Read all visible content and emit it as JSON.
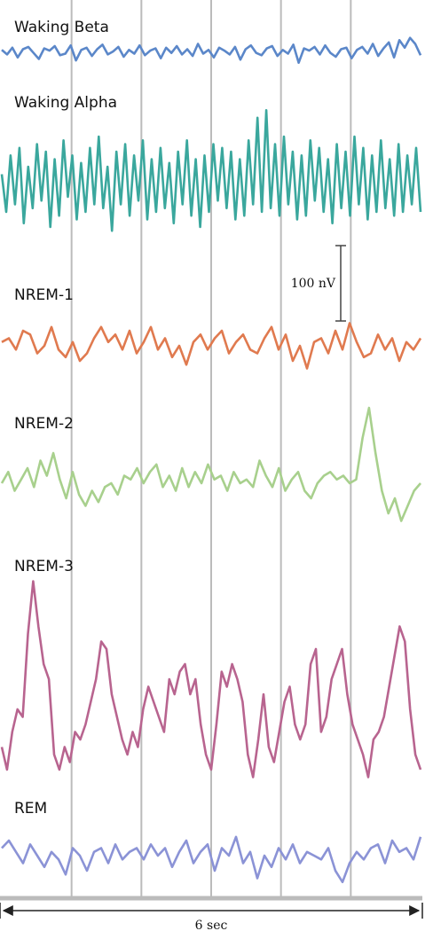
{
  "chart_data": {
    "type": "line",
    "scale_bar": {
      "value": 100,
      "label": "100 nV"
    },
    "time_span": {
      "value": 6,
      "label": "6 sec"
    },
    "series": [
      {
        "name": "Waking Beta",
        "color": "#5b87c9",
        "values": [
          2,
          -4,
          5,
          -8,
          3,
          6,
          -2,
          -10,
          4,
          1,
          7,
          -5,
          -3,
          8,
          -12,
          2,
          5,
          -6,
          3,
          9,
          -4,
          0,
          6,
          -7,
          2,
          -3,
          8,
          -5,
          1,
          4,
          -9,
          5,
          -2,
          7,
          -4,
          3,
          -6,
          10,
          -3,
          2,
          -8,
          5,
          1,
          -4,
          6,
          -11,
          3,
          8,
          -2,
          -5,
          4,
          7,
          -6,
          2,
          -3,
          9,
          -15,
          4,
          1,
          6,
          -4,
          8,
          -2,
          -7,
          3,
          5,
          -9,
          2,
          6,
          -3,
          10,
          -6,
          4,
          12,
          -8,
          15,
          5,
          18,
          10,
          -5
        ]
      },
      {
        "name": "Waking Alpha",
        "color": "#3aa79d",
        "values": [
          10,
          -40,
          35,
          -30,
          45,
          -55,
          20,
          -35,
          50,
          -25,
          40,
          -60,
          30,
          -45,
          55,
          -20,
          35,
          -50,
          25,
          -40,
          45,
          -30,
          60,
          -35,
          20,
          -65,
          40,
          -30,
          50,
          -45,
          35,
          -25,
          55,
          -50,
          30,
          -40,
          45,
          -35,
          25,
          -55,
          40,
          -30,
          55,
          -45,
          30,
          -60,
          35,
          -40,
          50,
          -25,
          45,
          -35,
          40,
          -50,
          30,
          -45,
          55,
          -30,
          85,
          -40,
          95,
          -35,
          50,
          -45,
          60,
          -30,
          40,
          -50,
          35,
          -45,
          55,
          -25,
          45,
          -40,
          30,
          -55,
          50,
          -35,
          40,
          -45,
          60,
          -30,
          45,
          -50,
          35,
          -40,
          55,
          -35,
          30,
          -45,
          50,
          -40,
          35,
          -30,
          45,
          -40
        ]
      },
      {
        "name": "NREM-1",
        "color": "#e07a4f",
        "values": [
          5,
          10,
          -5,
          20,
          15,
          -10,
          0,
          25,
          -5,
          -15,
          5,
          -20,
          -10,
          10,
          25,
          5,
          15,
          -5,
          20,
          -10,
          5,
          25,
          -5,
          10,
          -15,
          0,
          -25,
          5,
          15,
          -5,
          10,
          20,
          -10,
          5,
          15,
          -5,
          -10,
          10,
          25,
          -5,
          15,
          -20,
          0,
          -30,
          5,
          10,
          -10,
          20,
          -5,
          30,
          5,
          -15,
          -10,
          15,
          -5,
          10,
          -20,
          5,
          -5,
          10
        ]
      },
      {
        "name": "NREM-2",
        "color": "#a8d08d",
        "values": [
          0,
          15,
          -10,
          5,
          20,
          -5,
          30,
          10,
          40,
          5,
          -20,
          15,
          -15,
          -30,
          -10,
          -25,
          -5,
          0,
          -15,
          10,
          5,
          20,
          0,
          15,
          25,
          -5,
          10,
          -10,
          20,
          -5,
          15,
          0,
          25,
          5,
          10,
          -10,
          15,
          0,
          5,
          -5,
          30,
          10,
          -5,
          20,
          -10,
          5,
          15,
          -10,
          -20,
          0,
          10,
          15,
          5,
          10,
          0,
          5,
          60,
          100,
          40,
          -10,
          -40,
          -20,
          -50,
          -30,
          -10,
          0
        ]
      },
      {
        "name": "NREM-3",
        "color": "#b8648f",
        "values": [
          -50,
          -80,
          -30,
          0,
          -10,
          100,
          170,
          110,
          60,
          40,
          -60,
          -80,
          -50,
          -70,
          -30,
          -40,
          -20,
          10,
          40,
          90,
          80,
          20,
          -10,
          -40,
          -60,
          -30,
          -50,
          0,
          30,
          10,
          -10,
          -30,
          40,
          20,
          50,
          60,
          20,
          40,
          -20,
          -60,
          -80,
          -20,
          50,
          30,
          60,
          40,
          10,
          -60,
          -90,
          -40,
          20,
          -50,
          -70,
          -30,
          10,
          30,
          -20,
          -40,
          -20,
          60,
          80,
          -30,
          -10,
          40,
          60,
          80,
          20,
          -20,
          -40,
          -60,
          -90,
          -40,
          -30,
          -10,
          30,
          70,
          110,
          90,
          0,
          -60,
          -80
        ]
      },
      {
        "name": "REM",
        "color": "#8b93d6",
        "values": [
          10,
          20,
          5,
          -10,
          15,
          0,
          -15,
          5,
          -5,
          -25,
          10,
          0,
          -20,
          5,
          10,
          -10,
          15,
          -5,
          5,
          10,
          -5,
          15,
          0,
          10,
          -15,
          5,
          20,
          -10,
          5,
          15,
          -20,
          10,
          0,
          25,
          -10,
          5,
          -30,
          0,
          -15,
          10,
          -5,
          15,
          -10,
          5,
          0,
          -5,
          10,
          -20,
          -35,
          -10,
          5,
          -5,
          10,
          15,
          -10,
          20,
          5,
          10,
          -5,
          25
        ]
      }
    ]
  }
}
